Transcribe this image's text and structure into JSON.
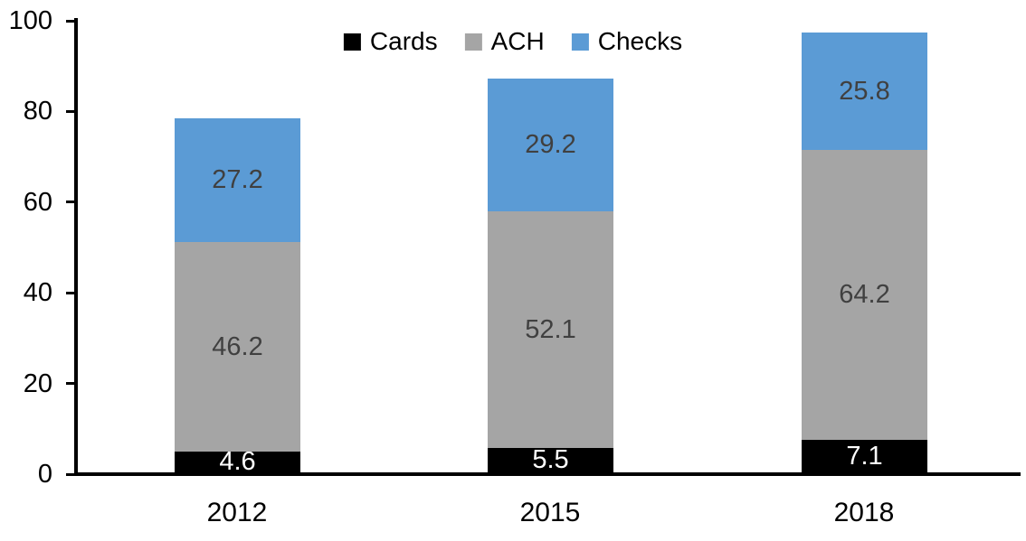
{
  "chart_data": {
    "type": "bar",
    "stacked": true,
    "title": "",
    "categories": [
      "2012",
      "2015",
      "2018"
    ],
    "series": [
      {
        "name": "Cards",
        "color": "#000000",
        "label_color": "#ffffff",
        "values": [
          4.6,
          5.5,
          7.1
        ]
      },
      {
        "name": "ACH",
        "color": "#a5a5a5",
        "label_color": "#404040",
        "values": [
          46.2,
          52.1,
          64.2
        ]
      },
      {
        "name": "Checks",
        "color": "#5b9bd5",
        "label_color": "#404040",
        "values": [
          27.2,
          29.2,
          25.8
        ]
      }
    ],
    "totals": [
      78.0,
      86.8,
      97.1
    ],
    "y_axis": {
      "min": 0,
      "max": 100,
      "ticks": [
        0,
        20,
        40,
        60,
        80,
        100
      ]
    },
    "x_axis": {
      "labels": [
        "2012",
        "2015",
        "2018"
      ]
    },
    "grid": false,
    "legend_position": "top-center",
    "legend_entries": [
      "Cards",
      "ACH",
      "Checks"
    ],
    "axis_color": "#000000",
    "text_color": "#000000",
    "background_color": "#ffffff"
  }
}
